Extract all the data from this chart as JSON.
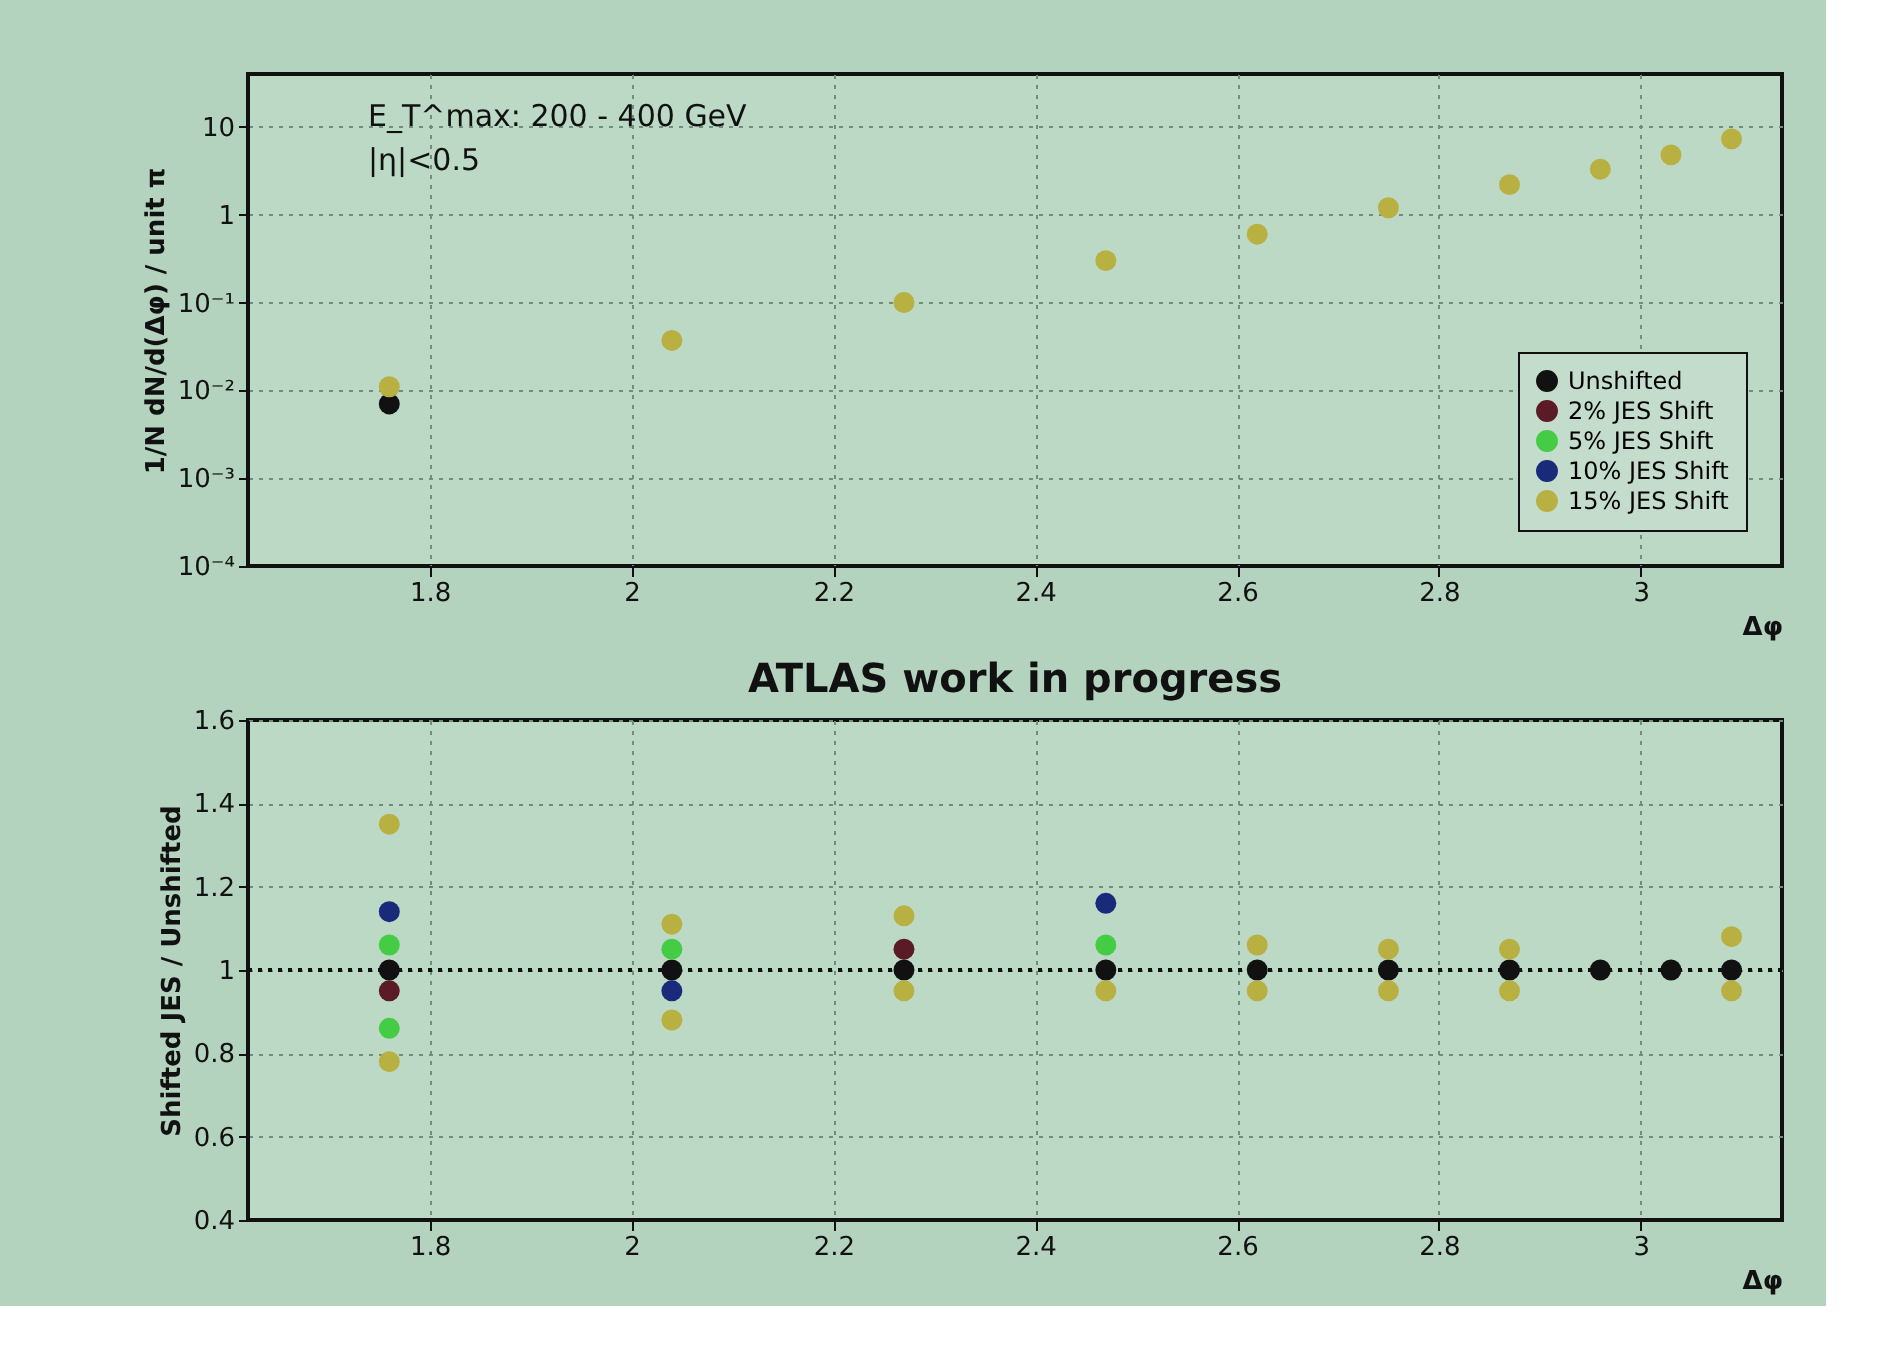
{
  "chart_data": [
    {
      "type": "scatter",
      "xlabel": "Δφ",
      "ylabel": "1/N dN/d(Δφ) / unit π",
      "log": true,
      "grid": true,
      "marker": "circle",
      "legend": "bottom right",
      "annotations": [
        "E_T^max: 200 - 400 GeV",
        "|η|<0.5"
      ],
      "xlim": [
        1.62,
        3.14
      ],
      "xticks": [
        1.8,
        2,
        2.2,
        2.4,
        2.6,
        2.8,
        3
      ],
      "ylim": [
        0.0001,
        40
      ],
      "yticks": [
        {
          "value": 0.0001,
          "label": "10⁻⁴"
        },
        {
          "value": 0.001,
          "label": "10⁻³"
        },
        {
          "value": 0.01,
          "label": "10⁻²"
        },
        {
          "value": 0.1,
          "label": "10⁻¹"
        },
        1,
        10
      ],
      "x": [
        1.76,
        2.04,
        2.27,
        2.47,
        2.62,
        2.75,
        2.87,
        2.96,
        3.03,
        3.09
      ],
      "series": [
        {
          "name": "Unshifted",
          "color": "#111111",
          "values": [
            0.007,
            null,
            null,
            null,
            null,
            null,
            null,
            null,
            null,
            null
          ]
        },
        {
          "name": "2% JES Shift",
          "color": "#5a1a26",
          "values": [
            null,
            null,
            null,
            null,
            null,
            null,
            null,
            null,
            null,
            null
          ]
        },
        {
          "name": "5% JES Shift",
          "color": "#44cc44",
          "values": [
            null,
            null,
            null,
            null,
            null,
            null,
            null,
            null,
            null,
            null
          ]
        },
        {
          "name": "10% JES Shift",
          "color": "#1a2a7a",
          "values": [
            null,
            null,
            null,
            null,
            null,
            null,
            null,
            null,
            null,
            null
          ]
        },
        {
          "name": "15% JES Shift",
          "color": "#b8b040",
          "values": [
            0.011,
            0.037,
            0.1,
            0.3,
            0.6,
            1.2,
            2.2,
            3.3,
            4.8,
            7.3
          ]
        }
      ]
    },
    {
      "type": "scatter",
      "title": "ATLAS work in progress",
      "xlabel": "Δφ",
      "ylabel": "Shifted JES / Unshifted",
      "grid": true,
      "marker": "circle",
      "xlim": [
        1.62,
        3.14
      ],
      "xticks": [
        1.8,
        2,
        2.2,
        2.4,
        2.6,
        2.8,
        3
      ],
      "ylim": [
        0.4,
        1.6
      ],
      "yticks": [
        0.4,
        0.6,
        0.8,
        1,
        1.2,
        1.4,
        1.6
      ],
      "ref_lines": [
        {
          "axis": "y",
          "value": 1,
          "color": "#111111",
          "line_style": "dotted"
        }
      ],
      "series": [
        {
          "color": "#111111",
          "x": [
            1.76,
            2.04,
            2.27,
            2.47,
            2.62,
            2.75,
            2.87,
            2.96,
            3.03,
            3.09
          ],
          "values": [
            1.0,
            1.0,
            1.0,
            1.0,
            1.0,
            1.0,
            1.0,
            1.0,
            1.0,
            1.0
          ]
        },
        {
          "color": "#5a1a26",
          "x": [
            1.76,
            2.27
          ],
          "values": [
            0.95,
            1.05
          ]
        },
        {
          "color": "#44cc44",
          "x": [
            1.76,
            1.76,
            2.04,
            2.47
          ],
          "values": [
            1.06,
            0.86,
            1.05,
            1.06
          ]
        },
        {
          "color": "#1a2a7a",
          "x": [
            1.76,
            2.04,
            2.47
          ],
          "values": [
            1.14,
            0.95,
            1.16
          ]
        },
        {
          "color": "#b8b040",
          "x": [
            1.76,
            1.76,
            2.04,
            2.04,
            2.27,
            2.27,
            2.47,
            2.62,
            2.62,
            2.75,
            2.75,
            2.87,
            2.87,
            3.09,
            3.09
          ],
          "values": [
            1.35,
            0.78,
            1.11,
            0.88,
            1.13,
            0.95,
            0.95,
            1.06,
            0.95,
            1.05,
            0.95,
            1.05,
            0.95,
            1.08,
            0.95
          ]
        }
      ]
    }
  ]
}
